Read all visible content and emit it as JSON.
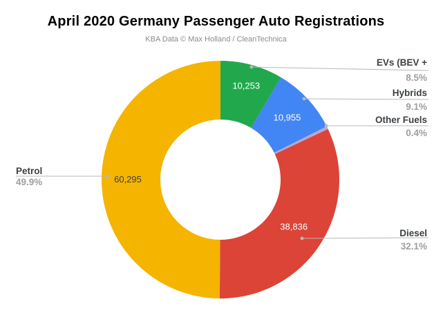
{
  "chart_data": {
    "type": "pie",
    "subtype": "donut",
    "title": "April 2020 Germany Passenger Auto Registrations",
    "subtitle": "KBA Data © Max Holland / CleanTechnica",
    "direction": "clockwise",
    "start_angle_deg": 0,
    "legend_position": "external-callouts",
    "slices": [
      {
        "label": "EVs (BEV +",
        "pct": 8.5,
        "pct_label": "8.5%",
        "value": 10253,
        "value_label": "10,253",
        "color": "#22A84C",
        "value_color": "#FFFFFF"
      },
      {
        "label": "Hybrids",
        "pct": 9.1,
        "pct_label": "9.1%",
        "value": 10955,
        "value_label": "10,955",
        "color": "#4285F4",
        "value_color": "#FFFFFF"
      },
      {
        "label": "Other Fuels",
        "pct": 0.4,
        "pct_label": "0.4%",
        "value": null,
        "value_label": "",
        "color": "#B4A7D6",
        "value_color": "#FFFFFF"
      },
      {
        "label": "Diesel",
        "pct": 32.1,
        "pct_label": "32.1%",
        "value": 38836,
        "value_label": "38,836",
        "color": "#DB4437",
        "value_color": "#FFFFFF"
      },
      {
        "label": "Petrol",
        "pct": 49.9,
        "pct_label": "49.9%",
        "value": 60295,
        "value_label": "60,295",
        "color": "#F4B400",
        "value_color": "#404040"
      }
    ],
    "colors": {
      "title_text": "#000000",
      "subtitle_text": "#8A8A8A",
      "label_text": "#3C4043",
      "pct_text": "#9E9E9E",
      "leader_line": "#B7B7B7",
      "background": "#FFFFFF"
    }
  }
}
